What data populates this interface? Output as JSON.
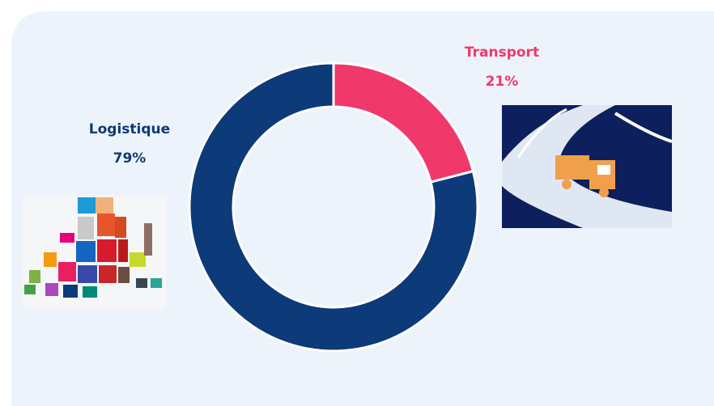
{
  "chart_data": {
    "type": "pie",
    "donut": true,
    "categories": [
      "Transport",
      "Logistique"
    ],
    "values": [
      21,
      79
    ],
    "value_labels": [
      "21%",
      "79%"
    ],
    "colors": [
      "#f0386b",
      "#0d3a78"
    ]
  }
}
